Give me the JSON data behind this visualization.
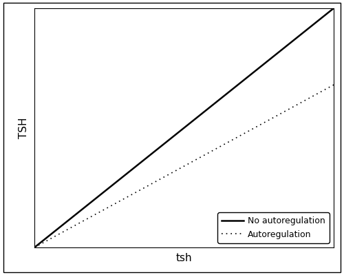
{
  "title": "",
  "xlabel": "tsh",
  "ylabel": "TSH",
  "x_range": [
    0,
    1
  ],
  "y_range": [
    0,
    1
  ],
  "line_no_autoreg": {
    "slope": 1.0,
    "intercept": 0.0,
    "color": "#000000",
    "linewidth": 1.8,
    "linestyle": "solid"
  },
  "line_autoreg": {
    "slope": 0.68,
    "intercept": 0.0,
    "color": "#000000",
    "linewidth": 1.2,
    "linestyle": "dotted"
  },
  "legend_labels": [
    "No autoregulation",
    "Autoregulation"
  ],
  "legend_loc": "lower right",
  "background_color": "#ffffff",
  "spine_color": "#000000",
  "label_fontsize": 11,
  "legend_fontsize": 9,
  "figsize": [
    5.0,
    3.99
  ],
  "dpi": 100,
  "outer_border_color": "#000000",
  "outer_border_linewidth": 1.0
}
